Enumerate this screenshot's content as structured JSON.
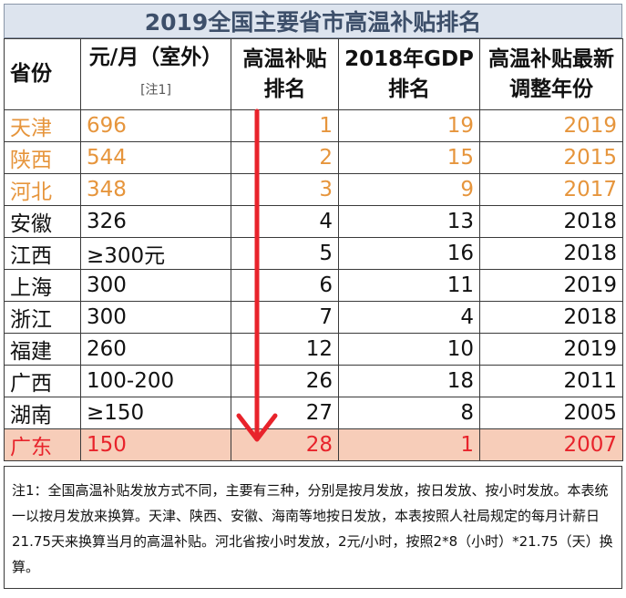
{
  "title": "2019全国主要省市高温补贴排名",
  "headers": {
    "province": "省份",
    "amount": "元/月（室外）",
    "amount_note": "[注1]",
    "rank": "高温补贴排名",
    "gdp_rank": "2018年GDP排名",
    "latest_year": "高温补贴最新调整年份"
  },
  "rows": [
    {
      "province": "天津",
      "amount": "696",
      "rank": "1",
      "gdp_rank": "19",
      "year": "2019",
      "style": "orange"
    },
    {
      "province": "陕西",
      "amount": "544",
      "rank": "2",
      "gdp_rank": "15",
      "year": "2015",
      "style": "orange"
    },
    {
      "province": "河北",
      "amount": "348",
      "rank": "3",
      "gdp_rank": "9",
      "year": "2017",
      "style": "orange"
    },
    {
      "province": "安徽",
      "amount": "326",
      "rank": "4",
      "gdp_rank": "13",
      "year": "2018",
      "style": "normal"
    },
    {
      "province": "江西",
      "amount": "≥300元",
      "rank": "5",
      "gdp_rank": "16",
      "year": "2018",
      "style": "normal"
    },
    {
      "province": "上海",
      "amount": "300",
      "rank": "6",
      "gdp_rank": "11",
      "year": "2019",
      "style": "normal"
    },
    {
      "province": "浙江",
      "amount": "300",
      "rank": "7",
      "gdp_rank": "4",
      "year": "2018",
      "style": "normal"
    },
    {
      "province": "福建",
      "amount": "260",
      "rank": "12",
      "gdp_rank": "10",
      "year": "2019",
      "style": "normal"
    },
    {
      "province": "广西",
      "amount": "100-200",
      "rank": "26",
      "gdp_rank": "18",
      "year": "2011",
      "style": "normal"
    },
    {
      "province": "湖南",
      "amount": "≥150",
      "rank": "27",
      "gdp_rank": "8",
      "year": "2005",
      "style": "normal"
    },
    {
      "province": "广东",
      "amount": "150",
      "rank": "28",
      "gdp_rank": "1",
      "year": "2007",
      "style": "red"
    }
  ],
  "footnote": "注1：全国高温补贴发放方式不同，主要有三种，分别是按月发放，按日发放、按小时发放。本表统一以按月发放来换算。天津、陕西、安徽、海南等地按日发放，本表按照人社局规定的每月计薪日21.75天来换算当月的高温补贴。河北省按小时发放，2元/小时，按照2*8（小时）*21.75（天）换算。",
  "colors": {
    "title_bg": "#dde4ee",
    "top3_text": "#e6953c",
    "highlight_text": "#e8232b",
    "highlight_bg": "#f7cdb9",
    "arrow": "#e8232b"
  },
  "icons": {
    "arrow": "down-arrow-icon"
  }
}
